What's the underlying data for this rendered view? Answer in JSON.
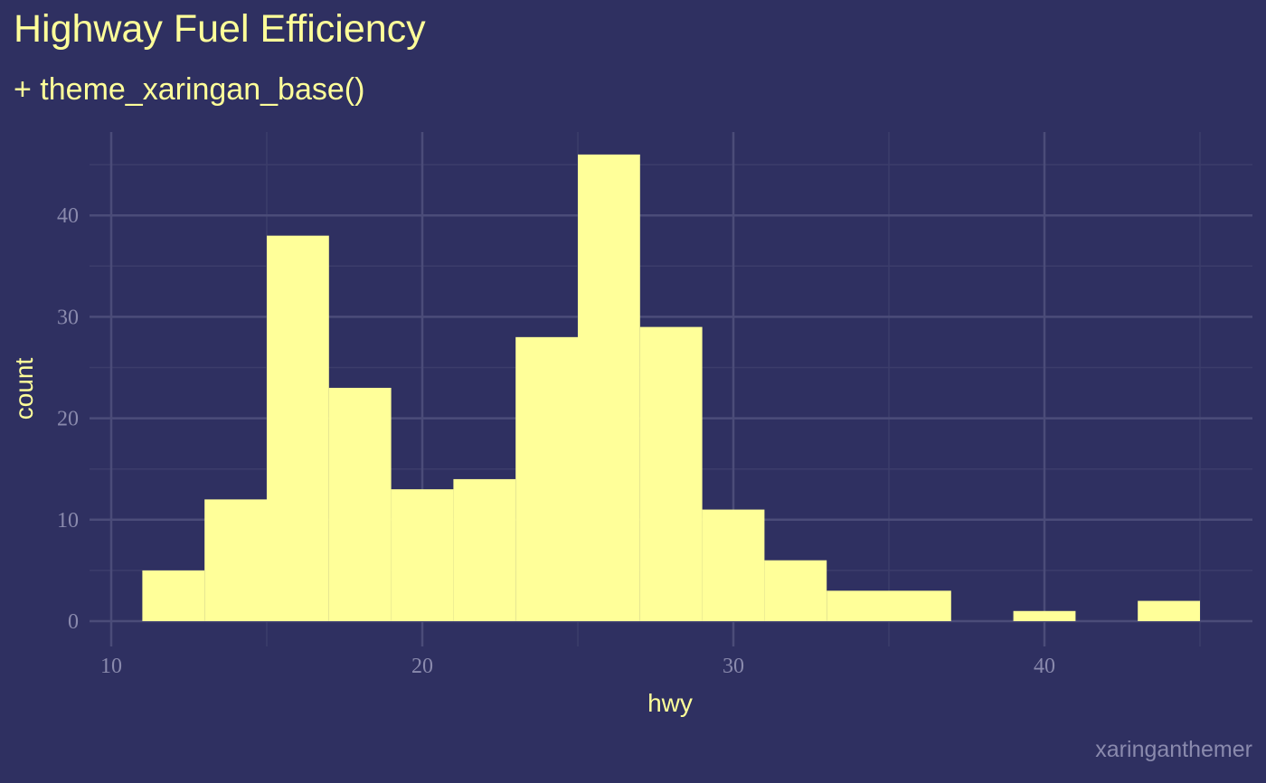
{
  "theme": {
    "background": "#2f3061",
    "accent": "#ffff99",
    "grid_major": "#4b4c79",
    "grid_minor": "#3c3d6b",
    "tick_color": "#8a8aad",
    "caption_color": "#8a8aad"
  },
  "chart_data": {
    "type": "bar",
    "title": "Highway Fuel Efficiency",
    "subtitle": "+ theme_xaringan_base()",
    "xlabel": "hwy",
    "ylabel": "count",
    "caption": "xaringanthemer",
    "binwidth": 2,
    "bins": [
      {
        "start": 11,
        "end": 13,
        "count": 5
      },
      {
        "start": 13,
        "end": 15,
        "count": 12
      },
      {
        "start": 15,
        "end": 17,
        "count": 38
      },
      {
        "start": 17,
        "end": 19,
        "count": 23
      },
      {
        "start": 19,
        "end": 21,
        "count": 13
      },
      {
        "start": 21,
        "end": 23,
        "count": 14
      },
      {
        "start": 23,
        "end": 25,
        "count": 28
      },
      {
        "start": 25,
        "end": 27,
        "count": 46
      },
      {
        "start": 27,
        "end": 29,
        "count": 29
      },
      {
        "start": 29,
        "end": 31,
        "count": 11
      },
      {
        "start": 31,
        "end": 33,
        "count": 6
      },
      {
        "start": 33,
        "end": 35,
        "count": 3
      },
      {
        "start": 35,
        "end": 37,
        "count": 3
      },
      {
        "start": 37,
        "end": 39,
        "count": 0
      },
      {
        "start": 39,
        "end": 41,
        "count": 1
      },
      {
        "start": 41,
        "end": 43,
        "count": 0
      },
      {
        "start": 43,
        "end": 45,
        "count": 2
      }
    ],
    "xlim": [
      10,
      45
    ],
    "ylim": [
      0,
      46
    ],
    "x_ticks": [
      10,
      20,
      30,
      40
    ],
    "x_minor_ticks": [
      15,
      25,
      35,
      45
    ],
    "y_ticks": [
      0,
      10,
      20,
      30,
      40
    ],
    "y_minor_ticks": [
      5,
      15,
      25,
      35,
      45
    ],
    "grid": true,
    "legend": "none"
  }
}
